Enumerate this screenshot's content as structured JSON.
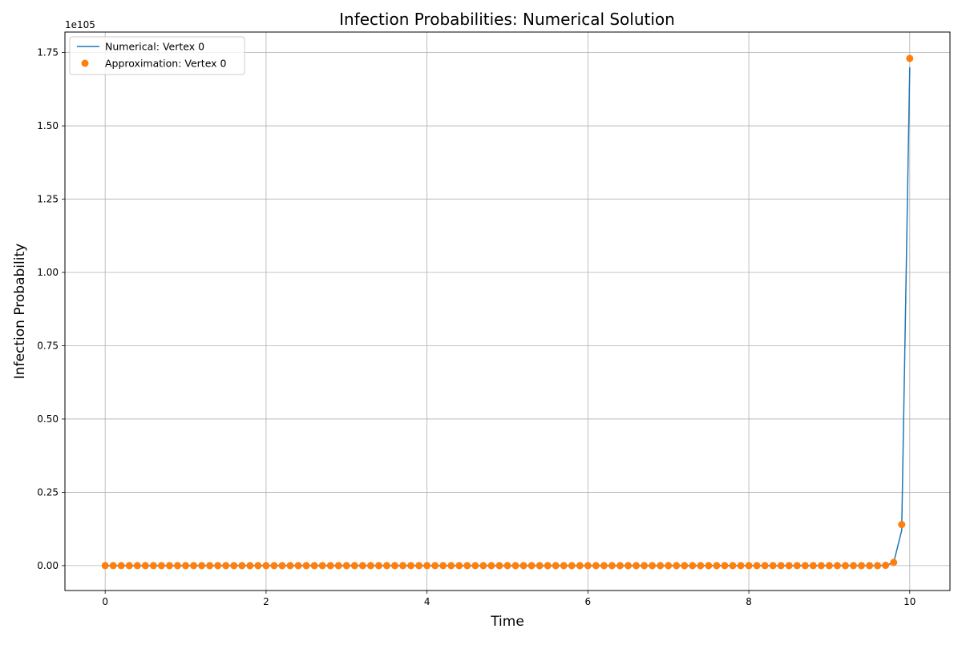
{
  "chart_data": {
    "type": "line",
    "title": "Infection Probabilities: Numerical Solution",
    "xlabel": "Time",
    "ylabel": "Infection Probability",
    "y_offset_label": "1e105",
    "xlim": [
      -0.5,
      10.5
    ],
    "ylim": [
      -0.085,
      1.82
    ],
    "y_unit_scale": "1e105",
    "grid": true,
    "legend_position": "top-left",
    "x_ticks": [
      0,
      2,
      4,
      6,
      8,
      10
    ],
    "x_tick_labels": [
      "0",
      "2",
      "4",
      "6",
      "8",
      "10"
    ],
    "y_ticks": [
      0.0,
      0.25,
      0.5,
      0.75,
      1.0,
      1.25,
      1.5,
      1.75
    ],
    "y_tick_labels": [
      "0.00",
      "0.25",
      "0.50",
      "0.75",
      "1.00",
      "1.25",
      "1.50",
      "1.75"
    ],
    "series": [
      {
        "name": "Numerical: Vertex 0",
        "style": "line",
        "color": "#1f77b4",
        "x": [
          0,
          0.1,
          0.2,
          0.3,
          0.4,
          0.5,
          0.6,
          0.7,
          0.8,
          0.9,
          1.0,
          1.1,
          1.2,
          1.3,
          1.4,
          1.5,
          1.6,
          1.7,
          1.8,
          1.9,
          2.0,
          2.1,
          2.2,
          2.3,
          2.4,
          2.5,
          2.6,
          2.7,
          2.8,
          2.9,
          3.0,
          3.1,
          3.2,
          3.3,
          3.4,
          3.5,
          3.6,
          3.7,
          3.8,
          3.9,
          4.0,
          4.1,
          4.2,
          4.3,
          4.4,
          4.5,
          4.6,
          4.7,
          4.8,
          4.9,
          5.0,
          5.1,
          5.2,
          5.3,
          5.4,
          5.5,
          5.6,
          5.7,
          5.8,
          5.9,
          6.0,
          6.1,
          6.2,
          6.3,
          6.4,
          6.5,
          6.6,
          6.7,
          6.8,
          6.9,
          7.0,
          7.1,
          7.2,
          7.3,
          7.4,
          7.5,
          7.6,
          7.7,
          7.8,
          7.9,
          8.0,
          8.1,
          8.2,
          8.3,
          8.4,
          8.5,
          8.6,
          8.7,
          8.8,
          8.9,
          9.0,
          9.1,
          9.2,
          9.3,
          9.4,
          9.5,
          9.6,
          9.7,
          9.8,
          9.9,
          10.0
        ],
        "y": [
          0,
          0,
          0,
          0,
          0,
          0,
          0,
          0,
          0,
          0,
          0,
          0,
          0,
          0,
          0,
          0,
          0,
          0,
          0,
          0,
          0,
          0,
          0,
          0,
          0,
          0,
          0,
          0,
          0,
          0,
          0,
          0,
          0,
          0,
          0,
          0,
          0,
          0,
          0,
          0,
          0,
          0,
          0,
          0,
          0,
          0,
          0,
          0,
          0,
          0,
          0,
          0,
          0,
          0,
          0,
          0,
          0,
          0,
          0,
          0,
          0,
          0,
          0,
          0,
          0,
          0,
          0,
          0,
          0,
          0,
          0,
          0,
          0,
          0,
          0,
          0,
          0,
          0,
          0,
          0,
          0,
          0,
          0,
          0,
          0,
          0,
          0,
          0,
          0,
          0,
          0,
          0,
          0,
          0,
          0,
          0,
          0,
          0.001,
          0.01,
          0.12,
          1.7
        ]
      },
      {
        "name": "Approximation: Vertex 0",
        "style": "markers",
        "color": "#ff7f0e",
        "x": [
          0,
          0.1,
          0.2,
          0.3,
          0.4,
          0.5,
          0.6,
          0.7,
          0.8,
          0.9,
          1.0,
          1.1,
          1.2,
          1.3,
          1.4,
          1.5,
          1.6,
          1.7,
          1.8,
          1.9,
          2.0,
          2.1,
          2.2,
          2.3,
          2.4,
          2.5,
          2.6,
          2.7,
          2.8,
          2.9,
          3.0,
          3.1,
          3.2,
          3.3,
          3.4,
          3.5,
          3.6,
          3.7,
          3.8,
          3.9,
          4.0,
          4.1,
          4.2,
          4.3,
          4.4,
          4.5,
          4.6,
          4.7,
          4.8,
          4.9,
          5.0,
          5.1,
          5.2,
          5.3,
          5.4,
          5.5,
          5.6,
          5.7,
          5.8,
          5.9,
          6.0,
          6.1,
          6.2,
          6.3,
          6.4,
          6.5,
          6.6,
          6.7,
          6.8,
          6.9,
          7.0,
          7.1,
          7.2,
          7.3,
          7.4,
          7.5,
          7.6,
          7.7,
          7.8,
          7.9,
          8.0,
          8.1,
          8.2,
          8.3,
          8.4,
          8.5,
          8.6,
          8.7,
          8.8,
          8.9,
          9.0,
          9.1,
          9.2,
          9.3,
          9.4,
          9.5,
          9.6,
          9.7,
          9.8,
          9.9,
          10.0
        ],
        "y": [
          0,
          0,
          0,
          0,
          0,
          0,
          0,
          0,
          0,
          0,
          0,
          0,
          0,
          0,
          0,
          0,
          0,
          0,
          0,
          0,
          0,
          0,
          0,
          0,
          0,
          0,
          0,
          0,
          0,
          0,
          0,
          0,
          0,
          0,
          0,
          0,
          0,
          0,
          0,
          0,
          0,
          0,
          0,
          0,
          0,
          0,
          0,
          0,
          0,
          0,
          0,
          0,
          0,
          0,
          0,
          0,
          0,
          0,
          0,
          0,
          0,
          0,
          0,
          0,
          0,
          0,
          0,
          0,
          0,
          0,
          0,
          0,
          0,
          0,
          0,
          0,
          0,
          0,
          0,
          0,
          0,
          0,
          0,
          0,
          0,
          0,
          0,
          0,
          0,
          0,
          0,
          0,
          0,
          0,
          0,
          0,
          0,
          0.001,
          0.011,
          0.14,
          1.73
        ]
      }
    ]
  }
}
